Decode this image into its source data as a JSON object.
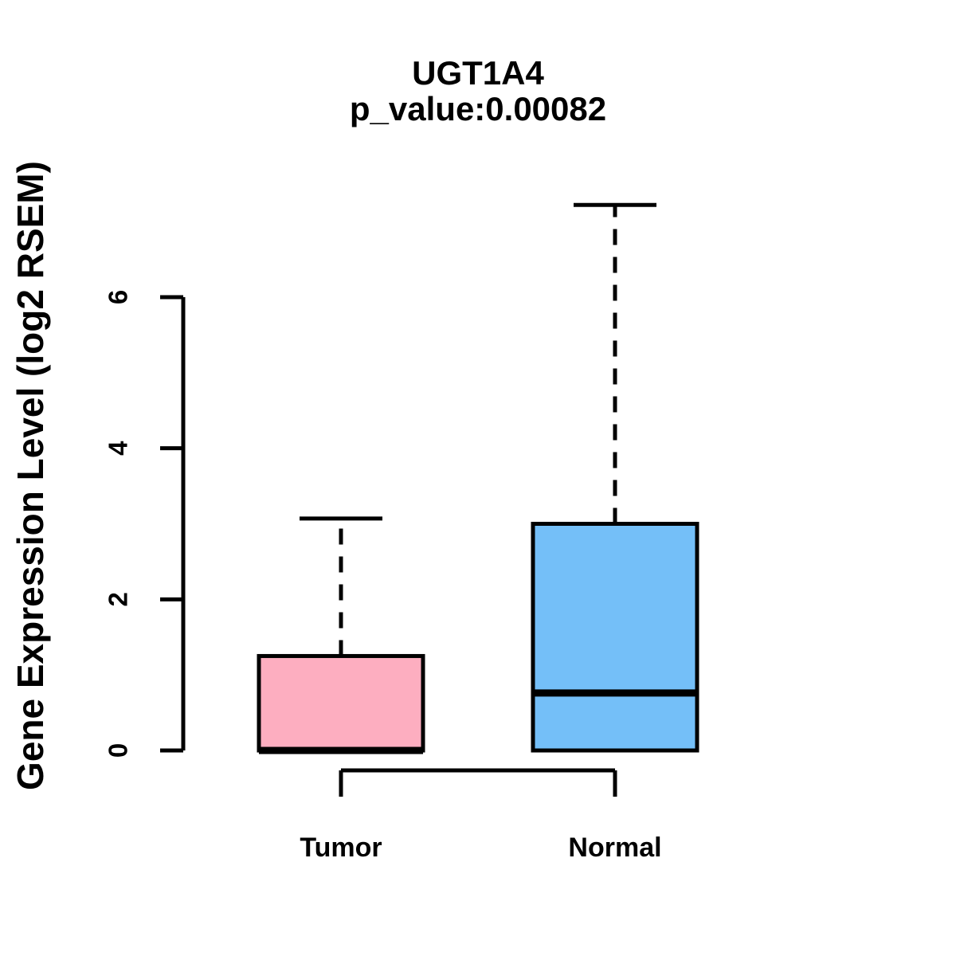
{
  "chart_data": {
    "type": "boxplot",
    "title": "UGT1A4",
    "subtitle": "p_value:0.00082",
    "gene": "UGT1A4",
    "p_value": 0.00082,
    "ylabel": "Gene Expression Level (log2 RSEM)",
    "xlabel": "",
    "ylim": [
      0,
      7.3
    ],
    "y_ticks": [
      0,
      2,
      4,
      6
    ],
    "grid": false,
    "legend_position": "none",
    "groups": [
      {
        "label": "Tumor",
        "color": "#FDAEC0",
        "whisker_low": 0,
        "q1": 0,
        "median": 0,
        "q3": 1.25,
        "whisker_high": 3.07
      },
      {
        "label": "Normal",
        "color": "#74BFF8",
        "whisker_low": 0,
        "q1": 0,
        "median": 0.76,
        "q3": 3.0,
        "whisker_high": 7.22
      }
    ],
    "colors": {
      "stroke": "#000000",
      "background": "#FFFFFF"
    }
  }
}
